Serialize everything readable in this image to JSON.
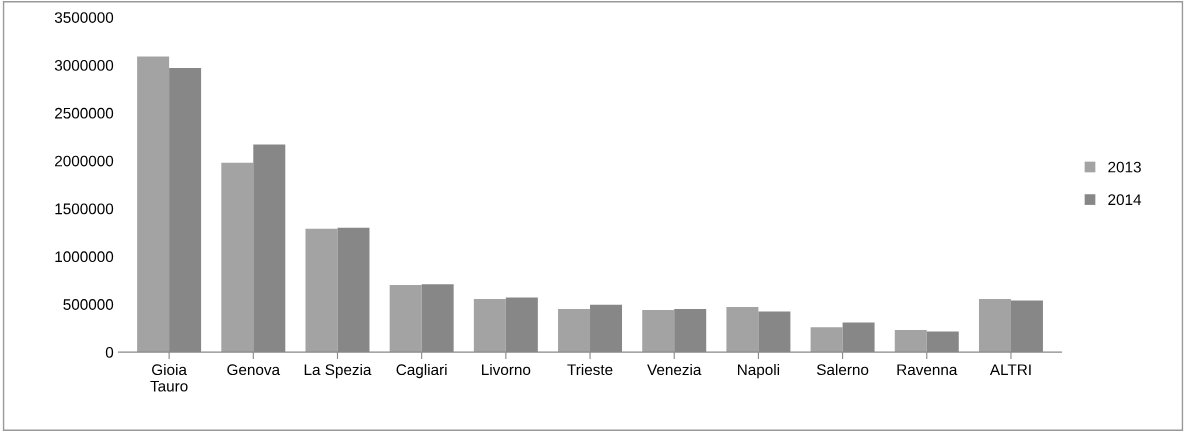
{
  "chart_data": {
    "type": "bar",
    "categories": [
      "Gioia\nTauro",
      "Genova",
      "La Spezia",
      "Cagliari",
      "Livorno",
      "Trieste",
      "Venezia",
      "Napoli",
      "Salerno",
      "Ravenna",
      "ALTRI"
    ],
    "series": [
      {
        "name": "2013",
        "color": "#a3a3a3",
        "values": [
          3090000,
          1980000,
          1290000,
          700000,
          555000,
          450000,
          440000,
          470000,
          260000,
          230000,
          555000
        ]
      },
      {
        "name": "2014",
        "color": "#878787",
        "values": [
          2970000,
          2170000,
          1300000,
          710000,
          570000,
          495000,
          450000,
          425000,
          310000,
          215000,
          540000
        ]
      }
    ],
    "ylim": [
      0,
      3500000
    ],
    "yticks": [
      0,
      500000,
      1000000,
      1500000,
      2000000,
      2500000,
      3000000,
      3500000
    ],
    "grid": false,
    "legend": "right"
  }
}
